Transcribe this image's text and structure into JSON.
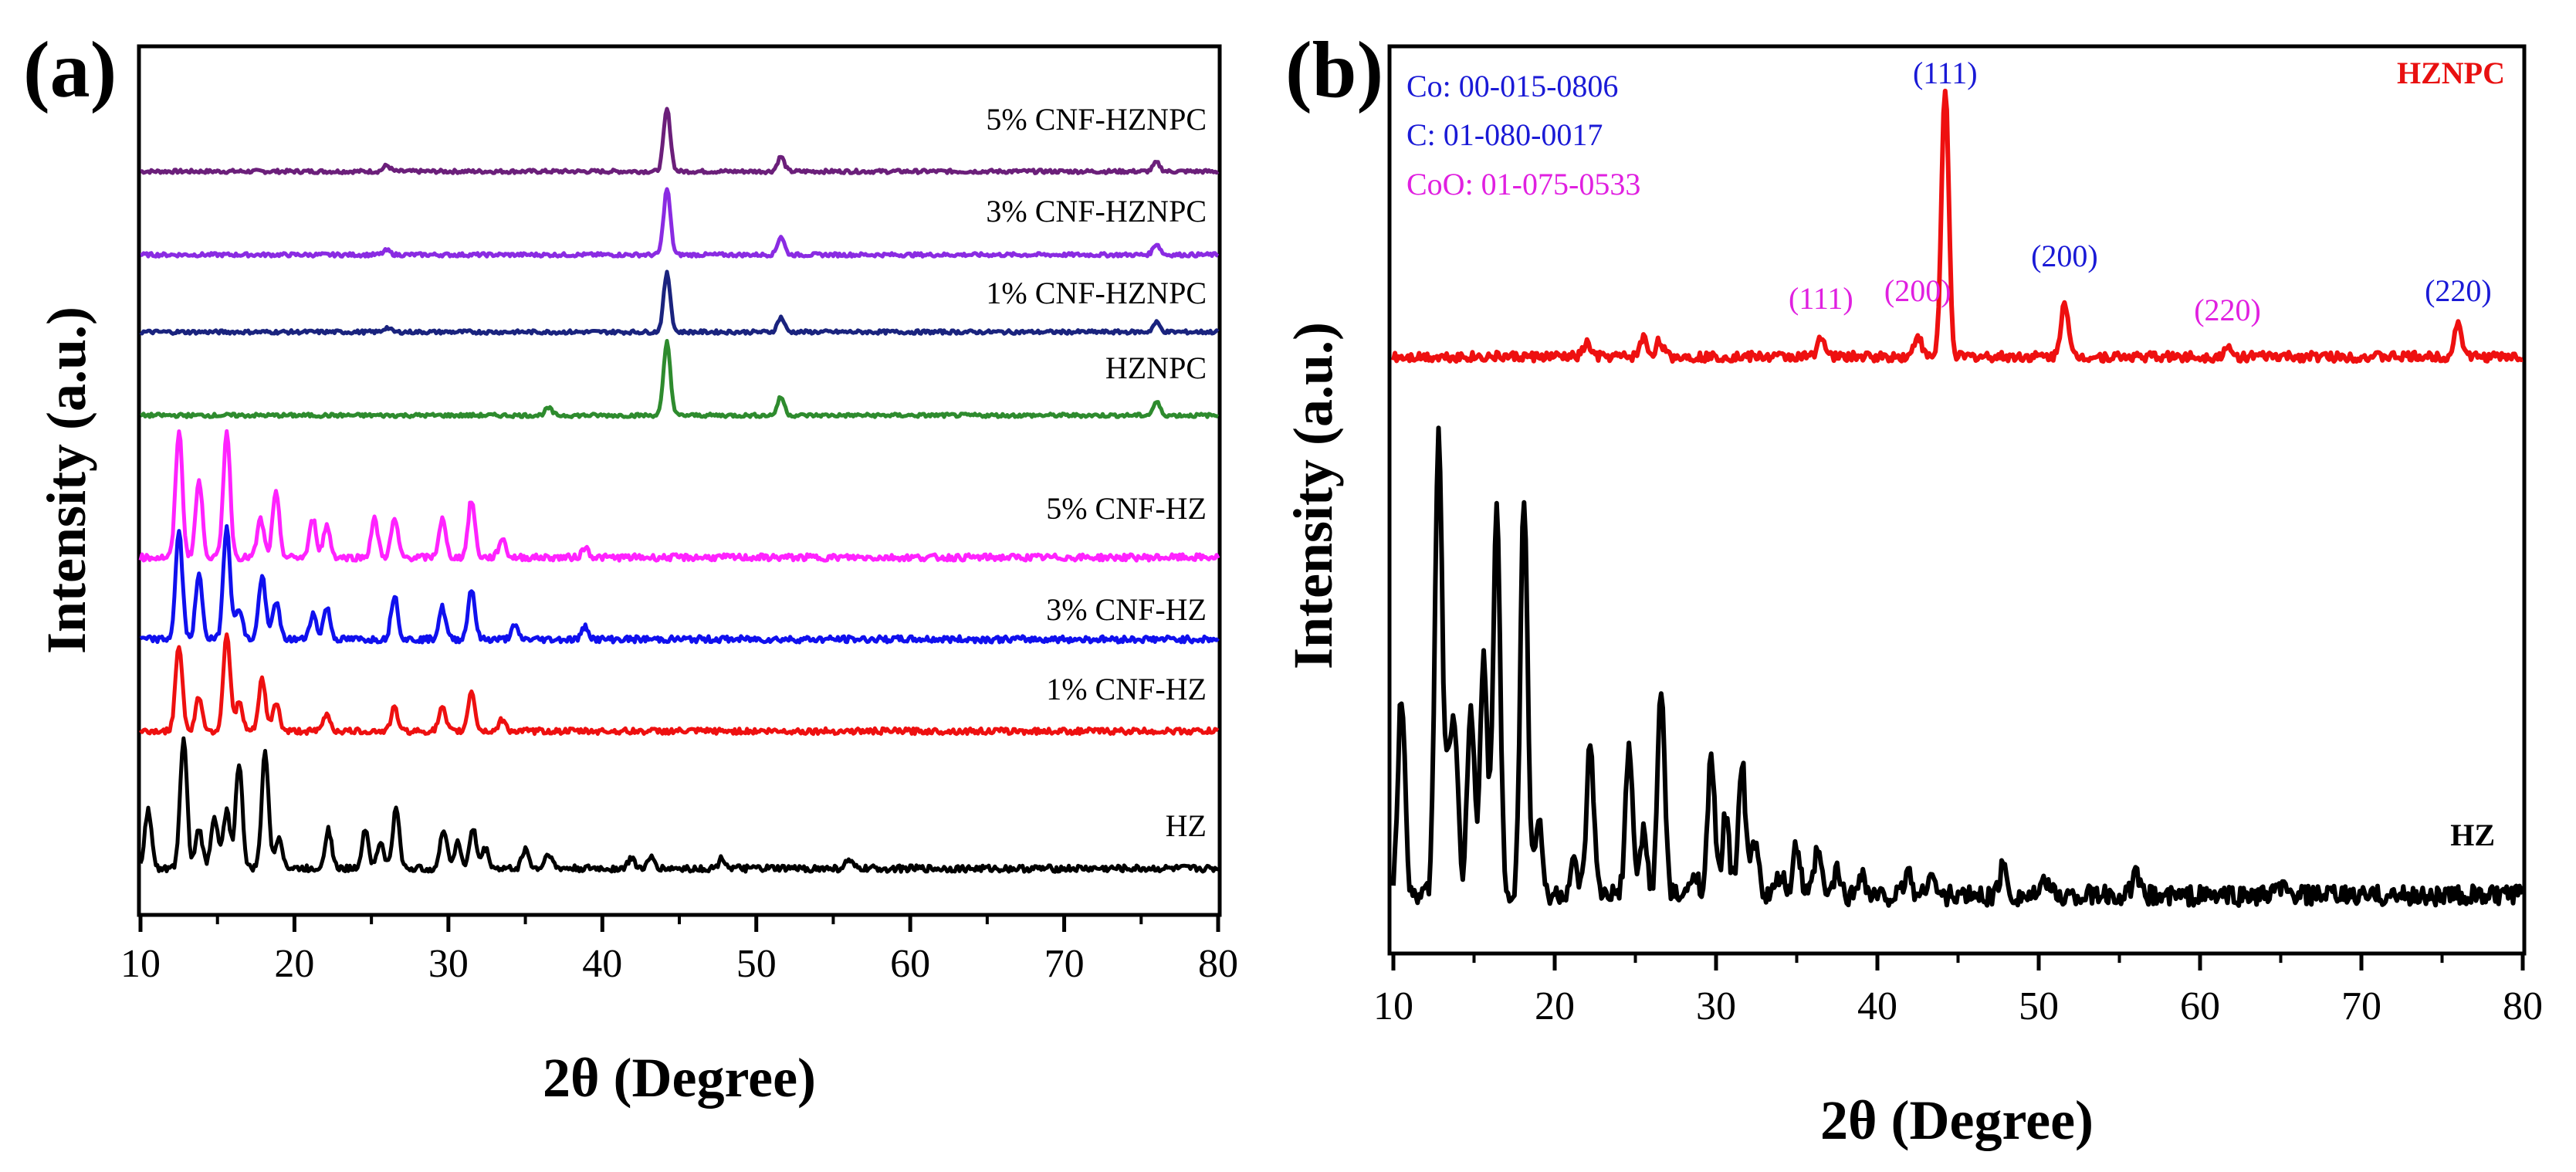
{
  "panels": [
    {
      "label": "(a)",
      "xlabel": "2θ (Degree)",
      "ylabel": "Intensity (a.u.)",
      "xticks": [
        10,
        20,
        30,
        40,
        50,
        60,
        70,
        80
      ],
      "xlim": [
        10,
        80
      ]
    },
    {
      "label": "(b)",
      "xlabel": "2θ (Degree)",
      "ylabel": "Intensity (a.u.)",
      "xticks": [
        10,
        20,
        30,
        40,
        50,
        60,
        70,
        80
      ],
      "xlim": [
        10,
        80
      ],
      "references": [
        {
          "text": "Co: 00-015-0806",
          "color": "#1a1ad6"
        },
        {
          "text": "C: 01-080-0017",
          "color": "#1a1ad6"
        },
        {
          "text": "CoO: 01-075-0533",
          "color": "#e020e0"
        }
      ],
      "peak_labels": [
        {
          "text": "(111)",
          "x": 44.2,
          "color": "#1a1ad6"
        },
        {
          "text": "(111)",
          "x": 36.5,
          "color": "#e020e0"
        },
        {
          "text": "(200)",
          "x": 42.5,
          "color": "#e020e0"
        },
        {
          "text": "(200)",
          "x": 51.6,
          "color": "#1a1ad6"
        },
        {
          "text": "(220)",
          "x": 61.7,
          "color": "#e020e0"
        },
        {
          "text": "(220)",
          "x": 76.0,
          "color": "#1a1ad6"
        }
      ]
    }
  ],
  "chart_data": [
    {
      "type": "line",
      "title": "(a)",
      "xlabel": "2θ (Degree)",
      "ylabel": "Intensity (a.u.)",
      "xlim": [
        10,
        80
      ],
      "y_ticks_shown": false,
      "series": [
        {
          "name": "5% CNF-HZNPC",
          "color": "#6b1f7a",
          "peaks": [
            [
              26,
              0.08
            ],
            [
              44.2,
              0.85
            ],
            [
              51.6,
              0.2
            ],
            [
              76,
              0.12
            ]
          ]
        },
        {
          "name": "3% CNF-HZNPC",
          "color": "#8a2be2",
          "peaks": [
            [
              26,
              0.06
            ],
            [
              44.2,
              0.9
            ],
            [
              51.6,
              0.25
            ],
            [
              76,
              0.15
            ]
          ]
        },
        {
          "name": "1% CNF-HZNPC",
          "color": "#1a237e",
          "peaks": [
            [
              26,
              0.06
            ],
            [
              44.2,
              0.8
            ],
            [
              51.6,
              0.2
            ],
            [
              76,
              0.13
            ]
          ]
        },
        {
          "name": "HZNPC",
          "color": "#2e8b2e",
          "peaks": [
            [
              36.5,
              0.1
            ],
            [
              44.2,
              1.0
            ],
            [
              51.6,
              0.25
            ],
            [
              76,
              0.18
            ]
          ]
        },
        {
          "name": "5% CNF-HZ",
          "color": "#ff22ff",
          "peaks": [
            [
              12.5,
              1.0
            ],
            [
              13.8,
              0.6
            ],
            [
              15.6,
              1.0
            ],
            [
              17.8,
              0.3
            ],
            [
              18.8,
              0.5
            ],
            [
              21.2,
              0.3
            ],
            [
              22.1,
              0.25
            ],
            [
              25.2,
              0.3
            ],
            [
              26.5,
              0.3
            ],
            [
              29.6,
              0.3
            ],
            [
              31.5,
              0.45
            ],
            [
              33.5,
              0.15
            ],
            [
              38.9,
              0.08
            ]
          ]
        },
        {
          "name": "3% CNF-HZ",
          "color": "#1010ee",
          "peaks": [
            [
              12.5,
              0.85
            ],
            [
              13.8,
              0.5
            ],
            [
              15.6,
              0.9
            ],
            [
              16.4,
              0.25
            ],
            [
              17.9,
              0.5
            ],
            [
              18.8,
              0.3
            ],
            [
              21.2,
              0.2
            ],
            [
              22.1,
              0.25
            ],
            [
              26.5,
              0.35
            ],
            [
              29.6,
              0.25
            ],
            [
              31.5,
              0.4
            ],
            [
              34.3,
              0.1
            ],
            [
              38.9,
              0.1
            ]
          ]
        },
        {
          "name": "1% CNF-HZ",
          "color": "#ee1010",
          "peaks": [
            [
              12.5,
              0.75
            ],
            [
              13.8,
              0.3
            ],
            [
              15.6,
              0.85
            ],
            [
              16.4,
              0.25
            ],
            [
              17.9,
              0.45
            ],
            [
              18.8,
              0.25
            ],
            [
              22.1,
              0.15
            ],
            [
              26.5,
              0.2
            ],
            [
              29.6,
              0.2
            ],
            [
              31.5,
              0.35
            ],
            [
              33.5,
              0.1
            ]
          ]
        },
        {
          "name": "HZ",
          "color": "#000000",
          "peaks": [
            [
              10.5,
              0.45
            ],
            [
              12.8,
              1.0
            ],
            [
              13.8,
              0.3
            ],
            [
              14.8,
              0.4
            ],
            [
              15.6,
              0.45
            ],
            [
              16.4,
              0.8
            ],
            [
              18.1,
              0.9
            ],
            [
              19,
              0.25
            ],
            [
              22.2,
              0.3
            ],
            [
              24.6,
              0.3
            ],
            [
              25.6,
              0.2
            ],
            [
              26.6,
              0.45
            ],
            [
              29.7,
              0.3
            ],
            [
              30.6,
              0.2
            ],
            [
              31.6,
              0.3
            ],
            [
              32.4,
              0.15
            ],
            [
              35,
              0.15
            ],
            [
              36.5,
              0.12
            ],
            [
              41.9,
              0.08
            ],
            [
              43.2,
              0.08
            ],
            [
              47.8,
              0.08
            ],
            [
              56,
              0.06
            ]
          ]
        }
      ]
    },
    {
      "type": "line",
      "title": "(b)",
      "xlabel": "2θ (Degree)",
      "ylabel": "Intensity (a.u.)",
      "xlim": [
        10,
        80
      ],
      "y_ticks_shown": false,
      "series": [
        {
          "name": "HZNPC",
          "color": "#ee1010",
          "peaks": [
            [
              22,
              0.05
            ],
            [
              25.5,
              0.07
            ],
            [
              26.5,
              0.06
            ],
            [
              36.5,
              0.08
            ],
            [
              42.5,
              0.08
            ],
            [
              44.2,
              1.0
            ],
            [
              51.6,
              0.21
            ],
            [
              61.7,
              0.03
            ],
            [
              76.0,
              0.13
            ]
          ]
        },
        {
          "name": "HZ",
          "color": "#000000",
          "peaks": [
            [
              10.5,
              0.4
            ],
            [
              12.8,
              0.92
            ],
            [
              13.4,
              0.2
            ],
            [
              13.8,
              0.3
            ],
            [
              14.8,
              0.38
            ],
            [
              15.6,
              0.47
            ],
            [
              16.4,
              0.77
            ],
            [
              18.1,
              0.8
            ],
            [
              19,
              0.15
            ],
            [
              21.2,
              0.06
            ],
            [
              22.2,
              0.3
            ],
            [
              24.6,
              0.29
            ],
            [
              25.5,
              0.13
            ],
            [
              26.6,
              0.41
            ],
            [
              28.7,
              0.05
            ],
            [
              29.7,
              0.27
            ],
            [
              30.6,
              0.16
            ],
            [
              31.6,
              0.27
            ],
            [
              32.4,
              0.11
            ],
            [
              34,
              0.04
            ],
            [
              35,
              0.1
            ],
            [
              36.3,
              0.09
            ],
            [
              37.5,
              0.05
            ],
            [
              39,
              0.05
            ],
            [
              41.9,
              0.05
            ],
            [
              43.3,
              0.05
            ],
            [
              47.8,
              0.06
            ],
            [
              50.5,
              0.03
            ],
            [
              56,
              0.04
            ],
            [
              65,
              0.02
            ]
          ]
        }
      ]
    }
  ]
}
